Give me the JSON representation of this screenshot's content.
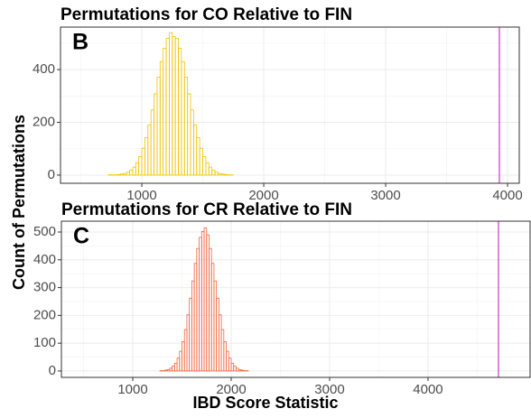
{
  "axis_labels": {
    "x": "IBD Score Statistic",
    "y": "Count of Permutations"
  },
  "chart_data": [
    {
      "type": "histogram",
      "title": "Permutations for CO Relative to FIN",
      "panel_label": "B",
      "color": "#f2c200",
      "vline": 3933,
      "vline_color": "#cc33cc",
      "grid": true,
      "xlim": [
        333,
        4096
      ],
      "ylim": [
        -31,
        561
      ],
      "xticks": [
        1000,
        2000,
        3000,
        4000
      ],
      "yticks": [
        0,
        200,
        400
      ],
      "bins": [
        500,
        525,
        550,
        575,
        600,
        625,
        650,
        675,
        700,
        725,
        750,
        775,
        800,
        825,
        850,
        875,
        900,
        925,
        950,
        975,
        1000,
        1025,
        1050,
        1075,
        1100,
        1125,
        1150,
        1175,
        1200,
        1225,
        1250,
        1275,
        1300,
        1325,
        1350,
        1375,
        1400,
        1425,
        1450,
        1475,
        1500,
        1525,
        1550,
        1575,
        1600,
        1625,
        1650,
        1675,
        1700,
        1725,
        1750,
        1775,
        1800,
        1825,
        1850,
        1875,
        1900,
        1925,
        1950,
        1975,
        2000,
        2025,
        2050,
        2075,
        2100,
        2125,
        2150,
        2175,
        2200,
        2225,
        2250,
        2275,
        2300,
        2325,
        2350,
        2375,
        2400,
        2425,
        2450,
        2475,
        2500,
        2525,
        2550,
        2575,
        2600,
        2625,
        2650,
        2675,
        2700,
        2725,
        2750,
        2775,
        2800,
        2825,
        2850,
        2875,
        2900,
        2925,
        2950,
        2975,
        3000
      ],
      "values": [
        0,
        0,
        0,
        0,
        0,
        0,
        0,
        0,
        0,
        1,
        1,
        1,
        2,
        4,
        6,
        11,
        19,
        30,
        47,
        70,
        102,
        142,
        190,
        247,
        308,
        371,
        430,
        481,
        518,
        540,
        525,
        518,
        481,
        430,
        371,
        308,
        247,
        190,
        142,
        102,
        70,
        47,
        30,
        19,
        11,
        6,
        4,
        2,
        1,
        1,
        0,
        0,
        0,
        0,
        0,
        0,
        0,
        0,
        0,
        0,
        0,
        0,
        0,
        0,
        0,
        0,
        0,
        0,
        0,
        0,
        0,
        0,
        0,
        0,
        0,
        0,
        0,
        0,
        0,
        0,
        0,
        0,
        0,
        0,
        0,
        0,
        0,
        0,
        0,
        0,
        0,
        0,
        0,
        0,
        0,
        0,
        0,
        0,
        0,
        0
      ]
    },
    {
      "type": "histogram",
      "title": "Permutations for CR Relative to FIN",
      "panel_label": "C",
      "color": "#f0643c",
      "vline": 4716,
      "vline_color": "#cc33cc",
      "grid": true,
      "xlim": [
        275,
        5037
      ],
      "ylim": [
        -23,
        539
      ],
      "xticks": [
        1000,
        2000,
        3000,
        4000
      ],
      "yticks": [
        0,
        100,
        200,
        300,
        400,
        500
      ],
      "bins": [
        500,
        525,
        550,
        575,
        600,
        625,
        650,
        675,
        700,
        725,
        750,
        775,
        800,
        825,
        850,
        875,
        900,
        925,
        950,
        975,
        1000,
        1025,
        1050,
        1075,
        1100,
        1125,
        1150,
        1175,
        1200,
        1225,
        1250,
        1275,
        1300,
        1325,
        1350,
        1375,
        1400,
        1425,
        1450,
        1475,
        1500,
        1525,
        1550,
        1575,
        1600,
        1625,
        1650,
        1675,
        1700,
        1725,
        1750,
        1775,
        1800,
        1825,
        1850,
        1875,
        1900,
        1925,
        1950,
        1975,
        2000,
        2025,
        2050,
        2075,
        2100,
        2125,
        2150,
        2175,
        2200,
        2225,
        2250,
        2275,
        2300,
        2325,
        2350,
        2375,
        2400,
        2425,
        2450,
        2475,
        2500,
        2525,
        2550,
        2575,
        2600,
        2625,
        2650,
        2675,
        2700,
        2725,
        2750,
        2775,
        2800,
        2825,
        2850,
        2875,
        2900,
        2925,
        2950,
        2975,
        3000
      ],
      "values": [
        0,
        0,
        0,
        0,
        0,
        0,
        0,
        0,
        0,
        0,
        0,
        0,
        0,
        0,
        0,
        0,
        0,
        0,
        0,
        0,
        0,
        0,
        0,
        0,
        0,
        0,
        0,
        0,
        0,
        0,
        0,
        1,
        1,
        3,
        5,
        10,
        17,
        28,
        46,
        71,
        105,
        149,
        202,
        262,
        324,
        387,
        441,
        481,
        502,
        515,
        490,
        441,
        387,
        324,
        262,
        202,
        149,
        105,
        71,
        46,
        28,
        17,
        10,
        5,
        3,
        1,
        1,
        0,
        0,
        0,
        0,
        0,
        0,
        0,
        0,
        0,
        0,
        0,
        0,
        0,
        0,
        0,
        0,
        0,
        0,
        0,
        0,
        0,
        0,
        0,
        0,
        0,
        0,
        0,
        0,
        0,
        0,
        0,
        0,
        0
      ]
    }
  ]
}
